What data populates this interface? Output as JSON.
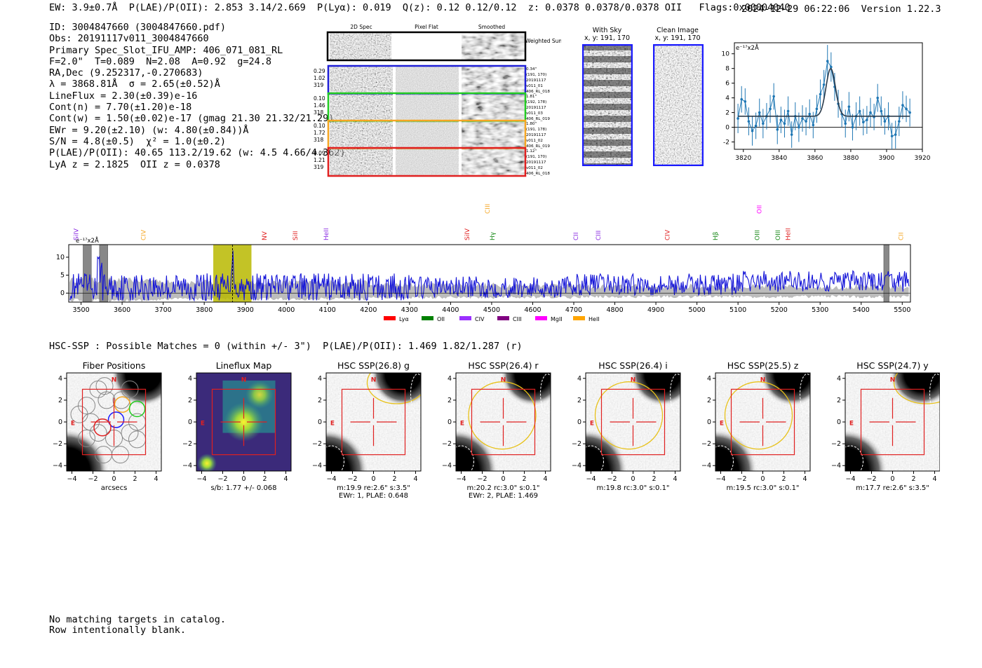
{
  "header": {
    "topline": "EW: 3.9±0.7Å  P(LAE)/P(OII): 2.853 3.14/2.669  P(Lyα): 0.019  Q(z): 0.12 0.12/0.12  z: 0.0378 0.0378/0.0378 OII   Flags:0x00004040",
    "datetime_version": "2024-12-29 06:22:06  Version 1.22.3"
  },
  "info_lines": [
    "ID: 3004847660 (3004847660.pdf)",
    "Obs: 20191117v011_3004847660",
    "Primary Spec_Slot_IFU_AMP: 406_071_081_RL",
    "F=2.0\"  T=0.089  N=2.08  A=0.92  g=24.8",
    "RA,Dec (9.252317,-0.270683)",
    "λ = 3868.81Å  σ = 2.65(±0.52)Å",
    "LineFlux = 2.30(±0.39)e-16",
    "Cont(n) = 7.70(±1.20)e-18",
    "Cont(w) = 1.50(±0.02)e-17 (gmag 21.30 21.32/21.29)",
    "EWr = 9.20(±2.10) (w: 4.80(±0.84))Å",
    "S/N = 4.8(±0.5)  χ² = 1.0(±0.2)",
    "P(LAE)/P(OII): 40.65 113.2/19.62 (w: 4.5 4.66/4.362)",
    "LyA z = 2.1825  OII z = 0.0378"
  ],
  "cutouts": {
    "column_headers": [
      "2D Spec",
      "Pixel Flat",
      "Smoothed"
    ],
    "weighted_sum_label": "Weighted Sum",
    "rows": [
      {
        "left": [
          "0.29",
          "1.02",
          "319"
        ],
        "right": [
          "0.34\"",
          "(191, 170)",
          "20191117",
          "v011_01",
          "406_RL_018"
        ],
        "color": "#1f1fd6"
      },
      {
        "left": [
          "0.10",
          "1.46",
          "318"
        ],
        "right": [
          "1.81\"",
          "(192, 178)",
          "20191117",
          "v011_03",
          "406_RL_019"
        ],
        "color": "#22cc22"
      },
      {
        "left": [
          "0.10",
          "1.72",
          "318"
        ],
        "right": [
          "1.80\"",
          "(191, 178)",
          "20191117",
          "v011_02",
          "406_RL_019"
        ],
        "color": "#f5a623"
      },
      {
        "left": [
          "0.09",
          "1.21",
          "319"
        ],
        "right": [
          "1.12\"",
          "(191, 170)",
          "20191117",
          "v011_02",
          "406_RL_018"
        ],
        "color": "#e02020"
      }
    ]
  },
  "sky_panels": [
    {
      "title": "With Sky",
      "subtitle": "x, y: 191, 170"
    },
    {
      "title": "Clean Image",
      "subtitle": "x, y: 191, 170"
    }
  ],
  "zoom_chart": {
    "type": "line",
    "unit_label": "e⁻¹⁷x2Å",
    "xlim": [
      3815,
      3920
    ],
    "ylim": [
      -3,
      11.5
    ],
    "xticks": [
      3820,
      3840,
      3860,
      3880,
      3900,
      3920
    ],
    "yticks": [
      -2,
      0,
      2,
      4,
      6,
      8,
      10
    ],
    "data_points": [
      {
        "x": 3817,
        "y": 1.2,
        "e": 2.0
      },
      {
        "x": 3819,
        "y": 3.8,
        "e": 1.8
      },
      {
        "x": 3821,
        "y": 3.5,
        "e": 1.8
      },
      {
        "x": 3823,
        "y": 0.8,
        "e": 1.9
      },
      {
        "x": 3825,
        "y": -0.5,
        "e": 2.0
      },
      {
        "x": 3827,
        "y": 0.2,
        "e": 1.8
      },
      {
        "x": 3829,
        "y": 2.0,
        "e": 1.9
      },
      {
        "x": 3831,
        "y": 0.5,
        "e": 2.0
      },
      {
        "x": 3833,
        "y": 1.5,
        "e": 1.8
      },
      {
        "x": 3835,
        "y": 2.5,
        "e": 1.9
      },
      {
        "x": 3837,
        "y": 4.2,
        "e": 1.8
      },
      {
        "x": 3839,
        "y": -0.3,
        "e": 2.0
      },
      {
        "x": 3841,
        "y": 1.0,
        "e": 1.8
      },
      {
        "x": 3843,
        "y": 0.5,
        "e": 1.9
      },
      {
        "x": 3845,
        "y": 2.2,
        "e": 2.0
      },
      {
        "x": 3847,
        "y": -1.0,
        "e": 1.8
      },
      {
        "x": 3849,
        "y": 1.5,
        "e": 1.9
      },
      {
        "x": 3851,
        "y": 0.0,
        "e": 2.0
      },
      {
        "x": 3853,
        "y": 1.2,
        "e": 1.8
      },
      {
        "x": 3855,
        "y": 0.8,
        "e": 1.9
      },
      {
        "x": 3857,
        "y": 1.8,
        "e": 2.0
      },
      {
        "x": 3859,
        "y": 0.3,
        "e": 1.8
      },
      {
        "x": 3861,
        "y": 2.5,
        "e": 1.9
      },
      {
        "x": 3863,
        "y": 4.5,
        "e": 2.0
      },
      {
        "x": 3865,
        "y": 5.8,
        "e": 2.0
      },
      {
        "x": 3867,
        "y": 9.0,
        "e": 2.2
      },
      {
        "x": 3869,
        "y": 8.2,
        "e": 2.0
      },
      {
        "x": 3871,
        "y": 5.5,
        "e": 1.9
      },
      {
        "x": 3873,
        "y": 3.2,
        "e": 1.9
      },
      {
        "x": 3875,
        "y": 1.8,
        "e": 1.8
      },
      {
        "x": 3877,
        "y": 0.5,
        "e": 1.9
      },
      {
        "x": 3879,
        "y": 2.8,
        "e": 2.0
      },
      {
        "x": 3881,
        "y": 0.0,
        "e": 1.8
      },
      {
        "x": 3883,
        "y": 1.5,
        "e": 1.9
      },
      {
        "x": 3885,
        "y": 2.2,
        "e": 2.0
      },
      {
        "x": 3887,
        "y": 0.7,
        "e": 1.8
      },
      {
        "x": 3889,
        "y": 1.0,
        "e": 1.9
      },
      {
        "x": 3891,
        "y": 2.0,
        "e": 2.0
      },
      {
        "x": 3893,
        "y": 1.4,
        "e": 1.8
      },
      {
        "x": 3895,
        "y": 4.0,
        "e": 1.9
      },
      {
        "x": 3897,
        "y": 2.2,
        "e": 2.0
      },
      {
        "x": 3899,
        "y": 0.8,
        "e": 1.8
      },
      {
        "x": 3901,
        "y": 1.5,
        "e": 1.9
      },
      {
        "x": 3903,
        "y": -1.2,
        "e": 1.8
      },
      {
        "x": 3905,
        "y": -1.0,
        "e": 1.9
      },
      {
        "x": 3907,
        "y": 0.8,
        "e": 2.0
      },
      {
        "x": 3909,
        "y": 3.0,
        "e": 1.9
      },
      {
        "x": 3911,
        "y": 2.5,
        "e": 1.8
      },
      {
        "x": 3913,
        "y": 2.0,
        "e": 1.9
      }
    ],
    "fit": {
      "center": 3868.81,
      "sigma": 2.65,
      "amplitude": 6.5,
      "continuum": 1.5,
      "x_from": 3817,
      "x_to": 3913
    }
  },
  "full_spectrum": {
    "type": "line",
    "unit_label": "e⁻¹⁷x2Å",
    "xlim": [
      3470,
      5520
    ],
    "ylim": [
      -2.5,
      13.5
    ],
    "xticks": [
      3500,
      3600,
      3700,
      3800,
      3900,
      4000,
      4100,
      4200,
      4300,
      4400,
      4500,
      4600,
      4700,
      4800,
      4900,
      5000,
      5100,
      5200,
      5300,
      5400,
      5500
    ],
    "yticks": [
      0,
      5,
      10
    ],
    "highlight_window": [
      3822,
      3915
    ],
    "line_center": 3868.81,
    "masked_regions": [
      [
        3505,
        3525
      ],
      [
        3545,
        3565
      ],
      [
        5455,
        5468
      ]
    ],
    "line_markers": [
      {
        "label": "SiIV",
        "wave": 3488,
        "color": "#8a2be2",
        "level": 1
      },
      {
        "label": "CIV",
        "wave": 3652,
        "color": "#f5a623",
        "level": 1
      },
      {
        "label": "NV",
        "wave": 3947,
        "color": "#e02020",
        "level": 1
      },
      {
        "label": "SiII",
        "wave": 4022,
        "color": "#e02020",
        "level": 1
      },
      {
        "label": "HeII",
        "wave": 4097,
        "color": "#8a2be2",
        "level": 1
      },
      {
        "label": "SiIV",
        "wave": 4440,
        "color": "#e02020",
        "level": 1
      },
      {
        "label": "CIII",
        "wave": 4490,
        "color": "#f5a623",
        "level": 2
      },
      {
        "label": "Hγ",
        "wave": 4502,
        "color": "#1a8a1a",
        "level": 1
      },
      {
        "label": "CII",
        "wave": 4705,
        "color": "#8a2be2",
        "level": 1
      },
      {
        "label": "CIII",
        "wave": 4760,
        "color": "#8a2be2",
        "level": 1
      },
      {
        "label": "CIV",
        "wave": 4928,
        "color": "#e02020",
        "level": 1
      },
      {
        "label": "Hβ",
        "wave": 5045,
        "color": "#1a8a1a",
        "level": 1
      },
      {
        "label": "OII",
        "wave": 5152,
        "color": "#ff00ff",
        "level": 2
      },
      {
        "label": "OIII",
        "wave": 5147,
        "color": "#1a8a1a",
        "level": 1
      },
      {
        "label": "OIII",
        "wave": 5197,
        "color": "#1a8a1a",
        "level": 1
      },
      {
        "label": "HeII",
        "wave": 5222,
        "color": "#e02020",
        "level": 1
      },
      {
        "label": "CII",
        "wave": 5497,
        "color": "#f5a623",
        "level": 1
      }
    ],
    "legend": [
      {
        "label": "Lyα",
        "color": "#ff0000"
      },
      {
        "label": "OII",
        "color": "#008000"
      },
      {
        "label": "CIV",
        "color": "#9b30ff"
      },
      {
        "label": "CIII",
        "color": "#800080"
      },
      {
        "label": "MgII",
        "color": "#ff00ff"
      },
      {
        "label": "HeII",
        "color": "#ffa500"
      }
    ]
  },
  "hsc_line": "HSC-SSP : Possible Matches = 0 (within +/- 3\")  P(LAE)/P(OII): 1.469 1.82/1.287 (r)",
  "image_panels": [
    {
      "title": "Fiber Positions",
      "caption1": "arcsecs",
      "caption2": ""
    },
    {
      "title": "Lineflux Map",
      "caption1": "s/b: 1.77 +/- 0.068",
      "caption2": ""
    },
    {
      "title": "HSC SSP(26.8) g",
      "caption1": "m:19.9  re:2.6\"  s:3.5\"",
      "caption2": "EWr: 1, PLAE: 0.648"
    },
    {
      "title": "HSC SSP(26.4) r",
      "caption1": "m:20.2 rc:3.0\"  s:0.1\"",
      "caption2": "EWr: 2, PLAE: 1.469"
    },
    {
      "title": "HSC SSP(26.4) i",
      "caption1": "m:19.8 rc:3.0\"  s:0.1\"",
      "caption2": ""
    },
    {
      "title": "HSC SSP(25.5) z",
      "caption1": "m:19.5 rc:3.0\"  s:0.1\"",
      "caption2": ""
    },
    {
      "title": "HSC SSP(24.7) y",
      "caption1": "m:17.7  re:2.6\"  s:3.5\"",
      "caption2": ""
    }
  ],
  "panel_axis": {
    "xticks": [
      "−4",
      "−2",
      "0",
      "2",
      "4"
    ],
    "yticks": [
      "4",
      "2",
      "0",
      "−2",
      "−4"
    ],
    "north": "N",
    "east": "E"
  },
  "footer": [
    "No matching targets in catalog.",
    "Row intentionally blank."
  ]
}
